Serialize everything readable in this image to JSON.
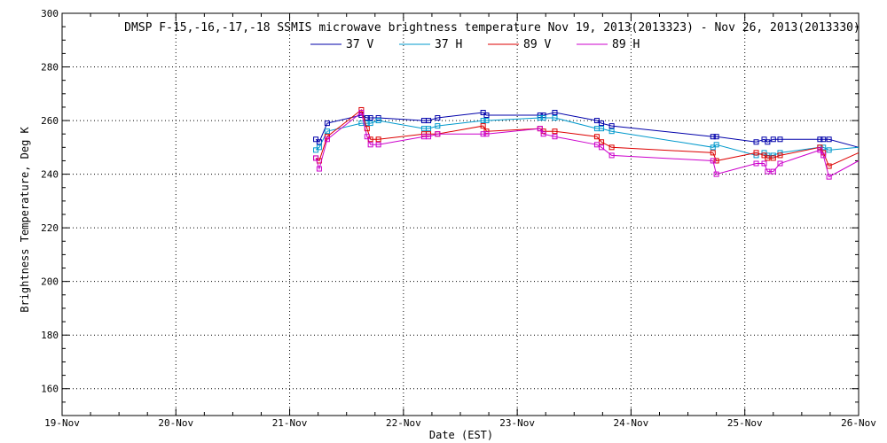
{
  "chart_data": {
    "type": "line",
    "title": "DMSP F-15,-16,-17,-18 SSMIS microwave brightness temperature Nov 19, 2013(2013323) - Nov 26, 2013(2013330)",
    "xlabel": "Date (EST)",
    "ylabel": "Brightness Temperature, Deg K",
    "ylim": [
      150,
      300
    ],
    "yticks": [
      160,
      180,
      200,
      220,
      240,
      260,
      280,
      300
    ],
    "xlim": [
      0,
      7
    ],
    "xticks": [
      {
        "value": 0,
        "label": "19-Nov"
      },
      {
        "value": 1,
        "label": "20-Nov"
      },
      {
        "value": 2,
        "label": "21-Nov"
      },
      {
        "value": 3,
        "label": "22-Nov"
      },
      {
        "value": 4,
        "label": "23-Nov"
      },
      {
        "value": 5,
        "label": "24-Nov"
      },
      {
        "value": 6,
        "label": "25-Nov"
      },
      {
        "value": 7,
        "label": "26-Nov"
      }
    ],
    "grid": true,
    "legend_position": "top-center",
    "series": [
      {
        "name": "37 V",
        "color": "#0000aa",
        "x": [
          2.23,
          2.26,
          2.33,
          2.63,
          2.68,
          2.71,
          2.78,
          3.18,
          3.22,
          3.3,
          3.7,
          3.73,
          4.2,
          4.23,
          4.33,
          4.7,
          4.74,
          4.83,
          5.72,
          5.75,
          6.1,
          6.17,
          6.2,
          6.25,
          6.31,
          6.66,
          6.69,
          6.74,
          7.0
        ],
        "y": [
          253,
          252,
          259,
          262,
          261,
          261,
          261,
          260,
          260,
          261,
          263,
          262,
          262,
          262,
          263,
          260,
          259,
          258,
          254,
          254,
          252,
          253,
          252,
          253,
          253,
          253,
          253,
          253,
          250
        ]
      },
      {
        "name": "37 H",
        "color": "#0099cc",
        "x": [
          2.23,
          2.26,
          2.33,
          2.63,
          2.68,
          2.71,
          2.78,
          3.18,
          3.22,
          3.3,
          3.7,
          3.73,
          4.2,
          4.23,
          4.33,
          4.7,
          4.74,
          4.83,
          5.72,
          5.75,
          6.1,
          6.17,
          6.2,
          6.25,
          6.31,
          6.66,
          6.69,
          6.74,
          7.0
        ],
        "y": [
          249,
          250,
          256,
          259,
          259,
          259,
          260,
          257,
          257,
          258,
          260,
          260,
          261,
          261,
          261,
          257,
          257,
          256,
          250,
          251,
          247,
          248,
          247,
          247,
          248,
          250,
          250,
          249,
          250
        ]
      },
      {
        "name": "89 V",
        "color": "#dd0000",
        "x": [
          2.23,
          2.26,
          2.33,
          2.63,
          2.68,
          2.71,
          2.78,
          3.18,
          3.22,
          3.3,
          3.7,
          3.73,
          4.2,
          4.23,
          4.33,
          4.7,
          4.74,
          4.83,
          5.72,
          5.75,
          6.1,
          6.17,
          6.2,
          6.25,
          6.31,
          6.66,
          6.69,
          6.74,
          7.0
        ],
        "y": [
          246,
          245,
          254,
          264,
          257,
          253,
          253,
          255,
          255,
          255,
          258,
          256,
          257,
          256,
          256,
          254,
          252,
          250,
          248,
          245,
          248,
          247,
          246,
          246,
          247,
          250,
          248,
          243,
          248
        ]
      },
      {
        "name": "89 H",
        "color": "#cc00cc",
        "x": [
          2.23,
          2.26,
          2.33,
          2.63,
          2.68,
          2.71,
          2.78,
          3.18,
          3.22,
          3.3,
          3.7,
          3.73,
          4.2,
          4.23,
          4.33,
          4.7,
          4.74,
          4.83,
          5.72,
          5.75,
          6.1,
          6.17,
          6.2,
          6.25,
          6.31,
          6.66,
          6.69,
          6.74,
          7.0
        ],
        "y": [
          246,
          242,
          253,
          263,
          254,
          251,
          251,
          254,
          254,
          255,
          255,
          255,
          257,
          255,
          254,
          251,
          250,
          247,
          245,
          240,
          244,
          244,
          241,
          241,
          244,
          249,
          247,
          239,
          245
        ]
      }
    ]
  }
}
